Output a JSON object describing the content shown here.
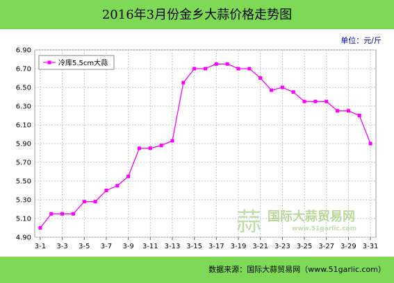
{
  "title": "2016年3月份金乡大蒜价格走势图",
  "unit": "单位：元/斤",
  "source": "数据来源：国际大蒜贸易网（www.51garlic.com）",
  "watermark": {
    "text": "国际大蒜贸易网",
    "url": "www.51garlic.com",
    "logo_char": "蒜"
  },
  "colors": {
    "bar": "#7ed957",
    "series": "#ff00ff",
    "grid": "#c8c8c8",
    "axis_text": "#0000aa"
  },
  "chart_data": {
    "type": "line",
    "title": "2016年3月份金乡大蒜价格走势图",
    "xlabel": "",
    "ylabel": "",
    "unit": "元/斤",
    "ylim": [
      4.9,
      6.9
    ],
    "y_ticks": [
      "4.90",
      "5.10",
      "5.30",
      "5.50",
      "5.70",
      "5.90",
      "6.10",
      "6.30",
      "6.50",
      "6.70",
      "6.90"
    ],
    "x": [
      "3-1",
      "3-2",
      "3-3",
      "3-4",
      "3-5",
      "3-6",
      "3-7",
      "3-8",
      "3-9",
      "3-10",
      "3-11",
      "3-12",
      "3-13",
      "3-14",
      "3-15",
      "3-16",
      "3-17",
      "3-18",
      "3-19",
      "3-20",
      "3-21",
      "3-22",
      "3-23",
      "3-24",
      "3-25",
      "3-26",
      "3-27",
      "3-28",
      "3-29",
      "3-30",
      "3-31"
    ],
    "x_tick_labels": [
      "3-1",
      "3-3",
      "3-5",
      "3-7",
      "3-9",
      "3-11",
      "3-13",
      "3-15",
      "3-17",
      "3-19",
      "3-21",
      "3-23",
      "3-25",
      "3-27",
      "3-29",
      "3-31"
    ],
    "grid": true,
    "legend": "top-left",
    "series": [
      {
        "name": "冷库5.5cm大蒜",
        "values": [
          5.0,
          5.15,
          5.15,
          5.15,
          5.28,
          5.28,
          5.4,
          5.45,
          5.55,
          5.85,
          5.85,
          5.88,
          5.93,
          6.55,
          6.7,
          6.7,
          6.75,
          6.75,
          6.7,
          6.7,
          6.6,
          6.47,
          6.5,
          6.45,
          6.35,
          6.35,
          6.35,
          6.25,
          6.25,
          6.2,
          5.9
        ]
      }
    ]
  }
}
